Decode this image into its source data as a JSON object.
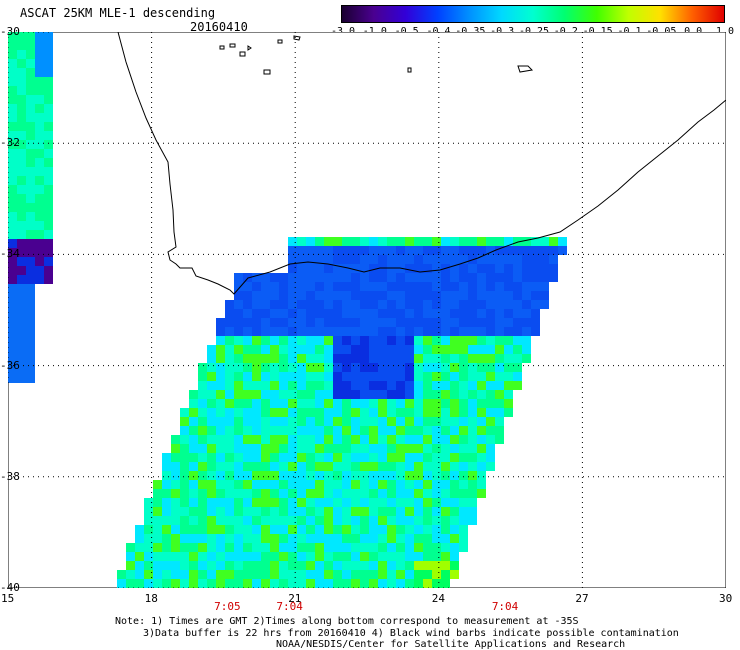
{
  "header": {
    "title": "ASCAT 25KM MLE-1 descending",
    "date": "20160410"
  },
  "colorbar": {
    "tick_labels": [
      "-3.0",
      "-1.0",
      "-0.5",
      "-0.4",
      "-0.35",
      "-0.3",
      "-0.25",
      "-0.2",
      "-0.15",
      "-0.1",
      "-0.05",
      "0.0",
      "1.0"
    ],
    "colors": [
      "#1a0030",
      "#4a0090",
      "#3200d8",
      "#0040ff",
      "#0090ff",
      "#00d8ff",
      "#00ffd0",
      "#00ff70",
      "#40ff00",
      "#c0ff00",
      "#ffe000",
      "#ff6000",
      "#e00000"
    ]
  },
  "map": {
    "lon_ticks": [
      "15",
      "18",
      "21",
      "24",
      "27",
      "30"
    ],
    "lat_ticks": [
      "-30",
      "-32",
      "-34",
      "-36",
      "-38",
      "-40"
    ],
    "lon_range": [
      15,
      30
    ],
    "lat_range": [
      -40,
      -30
    ],
    "pass_times": [
      {
        "label": "7:05",
        "lon": 19.6
      },
      {
        "label": "7:04",
        "lon": 20.9
      },
      {
        "label": "7:04",
        "lon": 25.4
      }
    ]
  },
  "footer": {
    "line1": "Note: 1) Times are GMT 2)Times along bottom correspond to measurement at -35S",
    "line2": "3)Data buffer is 22 hrs from 20160410 4) Black wind barbs indicate possible contamination",
    "line3": "NOAA/NESDIS/Center for Satellite Applications and Research"
  }
}
